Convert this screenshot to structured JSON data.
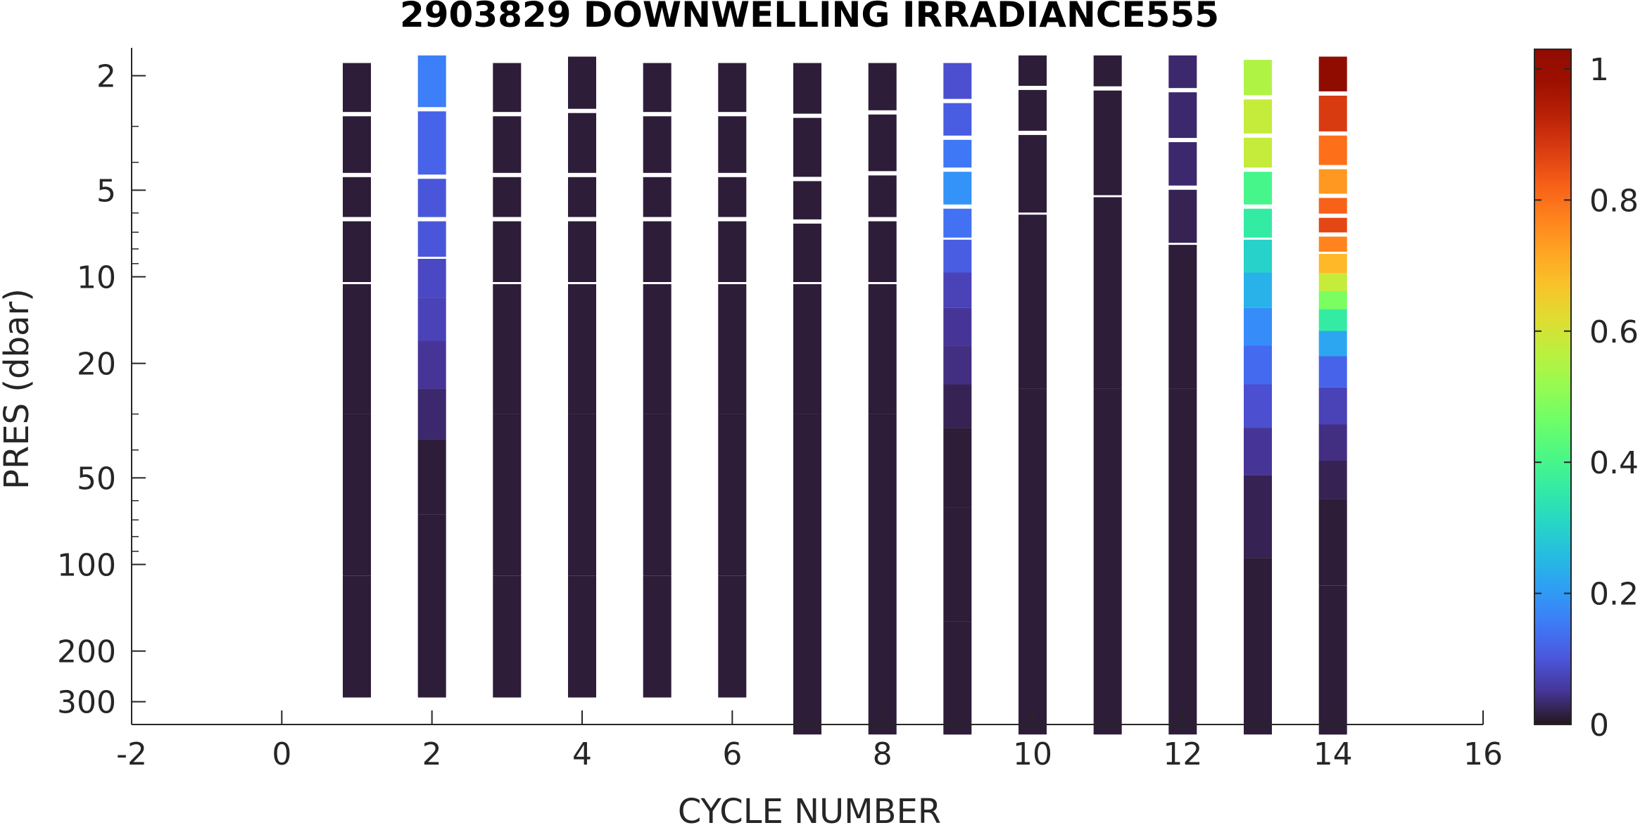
{
  "chart_data": {
    "type": "heatmap",
    "title": "2903829  DOWNWELLING IRRADIANCE555",
    "xlabel": "CYCLE NUMBER",
    "ylabel": "PRES (dbar)",
    "xlim": [
      -2,
      16
    ],
    "ylim": [
      1.6,
      360
    ],
    "y_scale": "log",
    "y_reversed": true,
    "x_ticks": [
      -2,
      0,
      2,
      4,
      6,
      8,
      10,
      12,
      14,
      16
    ],
    "y_ticks": [
      2,
      5,
      10,
      20,
      50,
      100,
      200,
      300
    ],
    "colorbar": {
      "colormap": "turbo",
      "range": [
        0,
        1.03
      ],
      "ticks": [
        0,
        0.2,
        0.4,
        0.6,
        0.8,
        1
      ]
    },
    "grid": false,
    "cycles": [
      {
        "cycle": 1,
        "max_pres": 290,
        "values": [
          [
            2.0,
            0.01
          ],
          [
            3.7,
            0.01
          ],
          [
            5.3,
            0.01
          ],
          [
            7.5,
            0.01
          ],
          [
            15,
            0.01
          ],
          [
            60,
            0.01
          ],
          [
            200,
            0.01
          ]
        ]
      },
      {
        "cycle": 2,
        "max_pres": 290,
        "values": [
          [
            1.8,
            0.16
          ],
          [
            3.8,
            0.12
          ],
          [
            5.3,
            0.1
          ],
          [
            7.5,
            0.1
          ],
          [
            10,
            0.08
          ],
          [
            14,
            0.07
          ],
          [
            20,
            0.05
          ],
          [
            30,
            0.03
          ],
          [
            45,
            0.01
          ],
          [
            100,
            0.01
          ],
          [
            200,
            0.01
          ]
        ]
      },
      {
        "cycle": 3,
        "max_pres": 290,
        "values": [
          [
            2.0,
            0.01
          ],
          [
            3.7,
            0.01
          ],
          [
            5.3,
            0.01
          ],
          [
            7.5,
            0.01
          ],
          [
            15,
            0.01
          ],
          [
            60,
            0.01
          ],
          [
            200,
            0.01
          ]
        ]
      },
      {
        "cycle": 4,
        "max_pres": 290,
        "values": [
          [
            1.9,
            0.01
          ],
          [
            3.7,
            0.01
          ],
          [
            5.3,
            0.01
          ],
          [
            7.5,
            0.01
          ],
          [
            15,
            0.01
          ],
          [
            60,
            0.01
          ],
          [
            200,
            0.01
          ]
        ]
      },
      {
        "cycle": 5,
        "max_pres": 290,
        "values": [
          [
            2.0,
            0.01
          ],
          [
            3.7,
            0.01
          ],
          [
            5.3,
            0.01
          ],
          [
            7.5,
            0.01
          ],
          [
            15,
            0.01
          ],
          [
            60,
            0.01
          ],
          [
            200,
            0.01
          ]
        ]
      },
      {
        "cycle": 6,
        "max_pres": 290,
        "values": [
          [
            2.0,
            0.01
          ],
          [
            3.7,
            0.01
          ],
          [
            5.3,
            0.01
          ],
          [
            7.5,
            0.01
          ],
          [
            15,
            0.01
          ],
          [
            60,
            0.01
          ],
          [
            200,
            0.01
          ]
        ]
      },
      {
        "cycle": 7,
        "max_pres": 390,
        "values": [
          [
            2.0,
            0.01
          ],
          [
            3.8,
            0.01
          ],
          [
            5.5,
            0.01
          ],
          [
            7.5,
            0.01
          ],
          [
            15,
            0.01
          ],
          [
            60,
            0.01
          ],
          [
            250,
            0.01
          ]
        ]
      },
      {
        "cycle": 8,
        "max_pres": 390,
        "values": [
          [
            2.0,
            0.01
          ],
          [
            3.6,
            0.01
          ],
          [
            5.3,
            0.01
          ],
          [
            7.5,
            0.01
          ],
          [
            15,
            0.01
          ],
          [
            60,
            0.01
          ],
          [
            250,
            0.01
          ]
        ]
      },
      {
        "cycle": 9,
        "max_pres": 390,
        "values": [
          [
            2.0,
            0.09
          ],
          [
            3.0,
            0.11
          ],
          [
            3.6,
            0.15
          ],
          [
            5.0,
            0.19
          ],
          [
            6.5,
            0.14
          ],
          [
            8.5,
            0.11
          ],
          [
            11,
            0.07
          ],
          [
            15,
            0.05
          ],
          [
            20,
            0.04
          ],
          [
            28,
            0.02
          ],
          [
            40,
            0.01
          ],
          [
            100,
            0.01
          ],
          [
            250,
            0.01
          ]
        ]
      },
      {
        "cycle": 10,
        "max_pres": 390,
        "values": [
          [
            1.8,
            0.01
          ],
          [
            2.7,
            0.01
          ],
          [
            3.7,
            0.01
          ],
          [
            10,
            0.01
          ],
          [
            60,
            0.01
          ],
          [
            250,
            0.01
          ]
        ]
      },
      {
        "cycle": 11,
        "max_pres": 390,
        "values": [
          [
            1.75,
            0.01
          ],
          [
            2.8,
            0.01
          ],
          [
            10,
            0.01
          ],
          [
            60,
            0.01
          ],
          [
            250,
            0.01
          ]
        ]
      },
      {
        "cycle": 12,
        "max_pres": 390,
        "values": [
          [
            1.8,
            0.03
          ],
          [
            2.8,
            0.03
          ],
          [
            4.0,
            0.03
          ],
          [
            6.0,
            0.02
          ],
          [
            10,
            0.01
          ],
          [
            60,
            0.01
          ],
          [
            250,
            0.01
          ]
        ]
      },
      {
        "cycle": 13,
        "max_pres": 390,
        "values": [
          [
            1.95,
            0.55
          ],
          [
            2.9,
            0.58
          ],
          [
            3.6,
            0.58
          ],
          [
            5.0,
            0.4
          ],
          [
            6.5,
            0.36
          ],
          [
            8.5,
            0.3
          ],
          [
            11,
            0.24
          ],
          [
            15,
            0.18
          ],
          [
            20,
            0.13
          ],
          [
            28,
            0.09
          ],
          [
            40,
            0.05
          ],
          [
            60,
            0.02
          ],
          [
            150,
            0.01
          ]
        ]
      },
      {
        "cycle": 14,
        "max_pres": 390,
        "values": [
          [
            1.9,
            1.02
          ],
          [
            2.8,
            0.88
          ],
          [
            3.6,
            0.8
          ],
          [
            4.8,
            0.74
          ],
          [
            5.7,
            0.82
          ],
          [
            6.6,
            0.86
          ],
          [
            7.7,
            0.77
          ],
          [
            9.0,
            0.69
          ],
          [
            10.5,
            0.58
          ],
          [
            12,
            0.48
          ],
          [
            14,
            0.36
          ],
          [
            17,
            0.22
          ],
          [
            21,
            0.12
          ],
          [
            28,
            0.07
          ],
          [
            38,
            0.04
          ],
          [
            50,
            0.02
          ],
          [
            70,
            0.01
          ],
          [
            200,
            0.01
          ]
        ]
      }
    ]
  }
}
